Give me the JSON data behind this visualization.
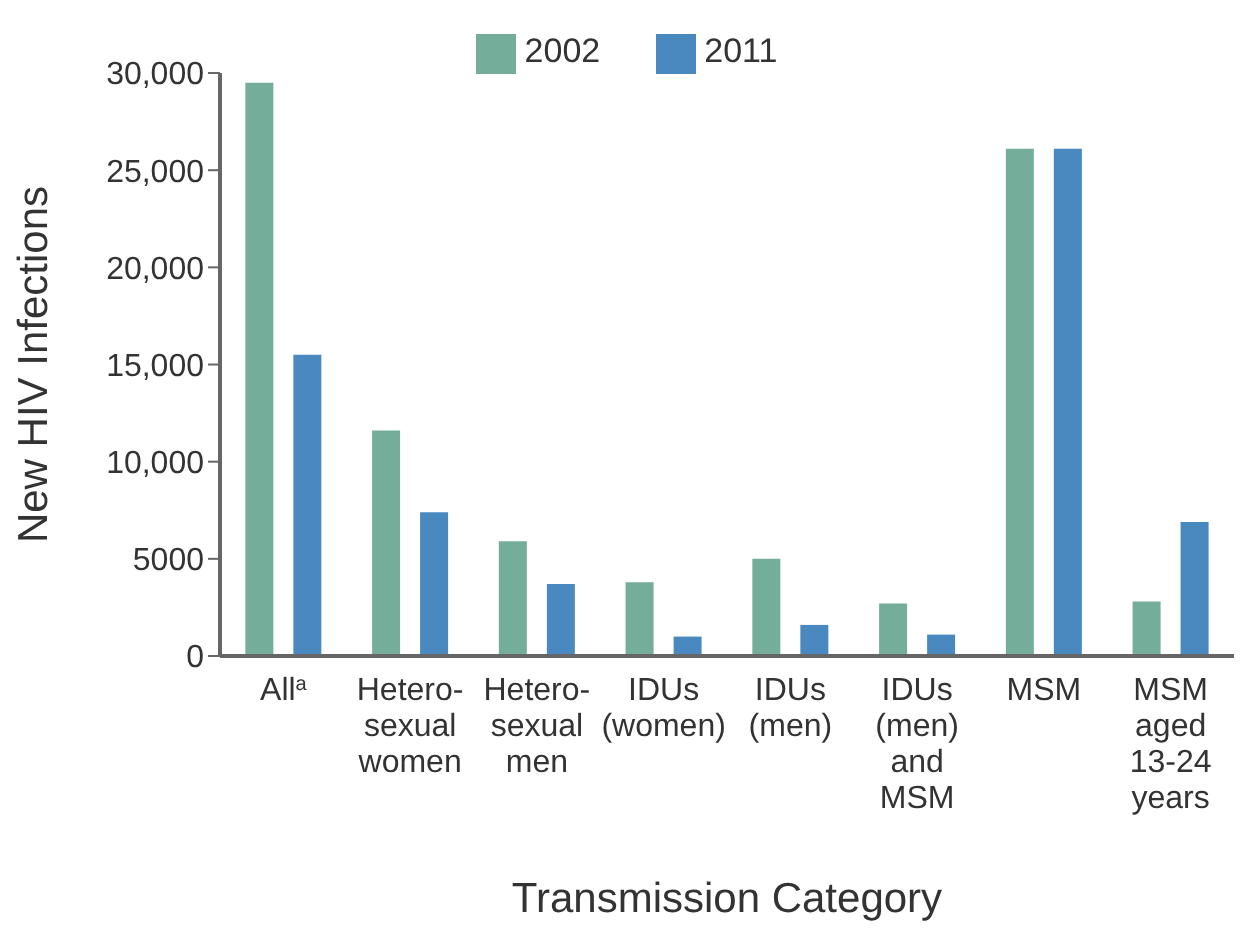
{
  "chart_data": {
    "type": "bar",
    "xlabel": "Transmission Category",
    "ylabel": "New HIV Infections",
    "categories": [
      "All$^{a}$",
      "Hetero-\nsexual\nwomen",
      "Hetero-\nsexual\nmen",
      "IDUs\n(women)",
      "IDUs\n(men)",
      "IDUs\n(men)\nand\nMSM",
      "MSM",
      "MSM\naged\n13-24\nyears"
    ],
    "series": [
      {
        "name": "2002",
        "color": "#74ae9a",
        "values": [
          29500,
          11600,
          5900,
          3800,
          5000,
          2700,
          26100,
          2800
        ]
      },
      {
        "name": "2011",
        "color": "#4a89c0",
        "values": [
          15500,
          7400,
          3700,
          1000,
          1600,
          1100,
          26100,
          6900
        ]
      }
    ],
    "ylim": [
      0,
      30000
    ],
    "yticks": [
      0,
      5000,
      {
        "value": 10000,
        "label": "10,000"
      },
      {
        "value": 15000,
        "label": "15,000"
      },
      {
        "value": 20000,
        "label": "20,000"
      },
      {
        "value": 25000,
        "label": "25,000"
      },
      {
        "value": 30000,
        "label": "30,000"
      }
    ],
    "grid": false,
    "legend": "top"
  }
}
